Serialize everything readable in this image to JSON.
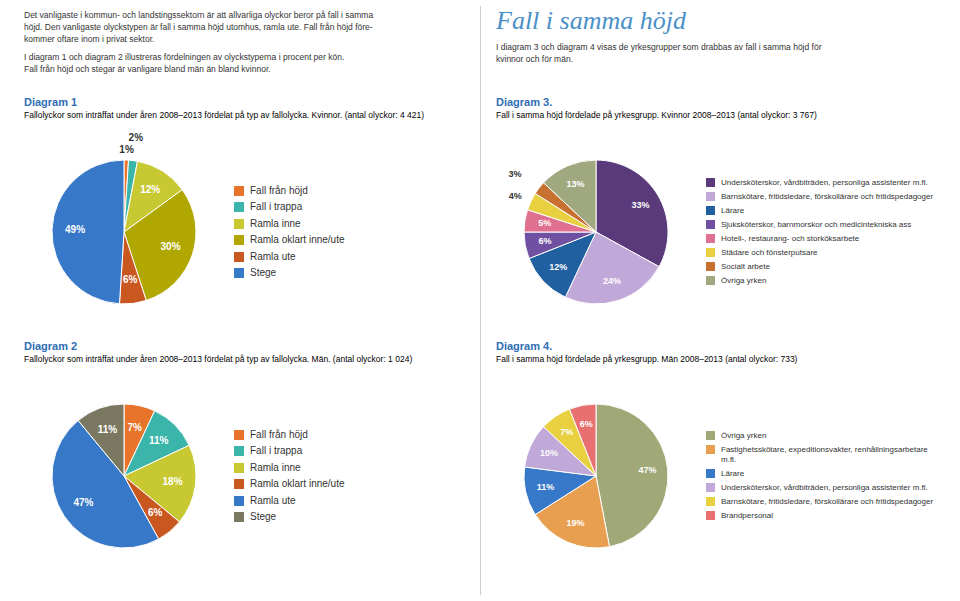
{
  "title": "Fall i samma höjd",
  "annotations": [
    "Det vanligaste i kommun- och landstingssektorn är att allvarliga olyckor beror på fall i samma\nhöjd. Den vanligaste olyckstypen är fall i samma höjd utomhus, ramla ute. Fall från höjd före-\nkommer oftare inom i privat sektor.",
    "I diagram 1 och diagram 2 illustreras fördelningen av olyckstyperna i procent per kön.\nFall från höjd och stegar är vanligare bland män än bland kvinnor.",
    "I diagram 3 och diagram 4 visas de yrkesgrupper som drabbas av fall i samma höjd för\nkvinnor och för män."
  ],
  "chart_data": [
    {
      "type": "pie",
      "title": "Diagram 1",
      "subtitle": "Fallolyckor som inträffat under åren 2008–2013 fördelat på typ av fallolycka. Kvinnor. (antal olyckor: 4 421)",
      "categories": [
        "Fall från höjd",
        "Fall i trappa",
        "Ramla inne",
        "Ramla oklart inne/ute",
        "Ramla ute",
        "Stege"
      ],
      "values": [
        1,
        2,
        12,
        30,
        6,
        49
      ],
      "value_labels": [
        "1%",
        "2%",
        "12%",
        "30%",
        "6%",
        "49%"
      ],
      "colors": [
        "#e8732a",
        "#3bb5aa",
        "#c8c832",
        "#b0a800",
        "#c85820",
        "#3878c8"
      ],
      "data_labels": true,
      "legend": "right"
    },
    {
      "type": "pie",
      "title": "Diagram 2",
      "subtitle": "Fallolyckor som inträffat under åren 2008–2013 fördelat på typ av fallolycka. Män. (antal olyckor: 1 024)",
      "categories": [
        "Fall från höjd",
        "Fall i trappa",
        "Ramla inne",
        "Ramla oklart inne/ute",
        "Ramla ute",
        "Stege"
      ],
      "values": [
        7,
        11,
        18,
        6,
        47,
        11
      ],
      "value_labels": [
        "7%",
        "11%",
        "18%",
        "6%",
        "47%",
        "11%"
      ],
      "colors": [
        "#e8732a",
        "#3bb5aa",
        "#c8c832",
        "#c85820",
        "#3878c8",
        "#7a7860"
      ],
      "data_labels": true,
      "legend": "right"
    },
    {
      "type": "pie",
      "title": "Diagram 3.",
      "subtitle": "Fall i samma höjd fördelade på yrkesgrupp. Kvinnor 2008–2013 (antal olyckor: 3 767)",
      "categories": [
        "Undersköterskor, vårdbiträden, personliga assistenter m.fl.",
        "Barnskötare, fritidsledare, förskollärare och fritidspedagoger",
        "Lärare",
        "Sjuksköterskor, barnmorskor och medicintekniska ass",
        "Hotell-, restaurang- och storköksarbete",
        "Städare och fönsterputsare",
        "Socialt arbete",
        "Övriga yrken"
      ],
      "values": [
        33,
        24,
        12,
        6,
        5,
        4,
        3,
        13
      ],
      "value_labels": [
        "33%",
        "24%",
        "12%",
        "6%",
        "5%",
        "4%",
        "3%",
        "13%"
      ],
      "colors": [
        "#5a3a7a",
        "#c0a8d8",
        "#2060a0",
        "#7050a0",
        "#e07090",
        "#e8d040",
        "#c87030",
        "#a0a880"
      ],
      "data_labels": true,
      "legend": "right"
    },
    {
      "type": "pie",
      "title": "Diagram 4.",
      "subtitle": "Fall i samma höjd fördelade på yrkesgrupp. Män 2008–2013 (antal olyckor: 733)",
      "categories": [
        "Övriga yrken",
        "Fastighetsskötare, expeditionsvakter, renhållningsarbetare m.fl.",
        "Lärare",
        "Undersköterskor, vårdbiträden, personliga assistenter m.fl.",
        "Barnskötare, fritidsledare, förskollärare och fritidspedagoger",
        "Brandpersonal"
      ],
      "values": [
        47,
        19,
        11,
        10,
        7,
        6
      ],
      "value_labels": [
        "47%",
        "19%",
        "11%",
        "10%",
        "7%",
        "6%"
      ],
      "colors": [
        "#a0a878",
        "#e8a050",
        "#3878c8",
        "#c0a8d8",
        "#e8d040",
        "#e87070"
      ],
      "data_labels": true,
      "legend": "right"
    }
  ]
}
